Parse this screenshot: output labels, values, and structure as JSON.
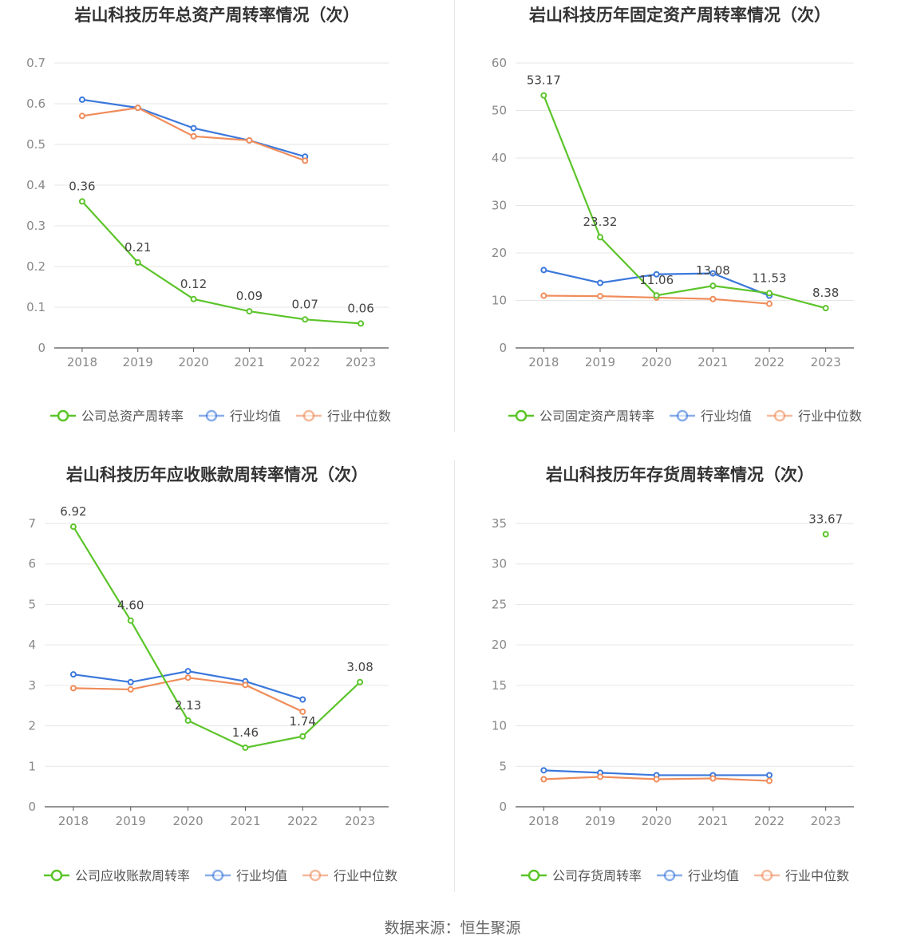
{
  "source_label": "数据来源：恒生聚源",
  "colors": {
    "company": "#5cc42a",
    "average": "#3b78dc",
    "median": "#f08c5a",
    "grid": "#e6e6e6",
    "axis": "#555555",
    "tick": "#888888"
  },
  "chart_data": [
    {
      "type": "line",
      "title": "岩山科技历年总资产周转率情况（次）",
      "categories": [
        "2018",
        "2019",
        "2020",
        "2021",
        "2022",
        "2023"
      ],
      "ylim": [
        0,
        0.7
      ],
      "yticks": [
        "0",
        "0.1",
        "0.2",
        "0.3",
        "0.4",
        "0.5",
        "0.6",
        "0.7"
      ],
      "legend_position": "bottom",
      "series": [
        {
          "name": "公司总资产周转率",
          "role": "company",
          "values": [
            0.36,
            0.21,
            0.12,
            0.09,
            0.07,
            0.06
          ],
          "labels": [
            "0.36",
            "0.21",
            "0.12",
            "0.09",
            "0.07",
            "0.06"
          ]
        },
        {
          "name": "行业均值",
          "role": "average",
          "values": [
            0.61,
            0.59,
            0.54,
            0.51,
            0.47,
            null
          ]
        },
        {
          "name": "行业中位数",
          "role": "median",
          "values": [
            0.57,
            0.59,
            0.52,
            0.51,
            0.46,
            null
          ]
        }
      ]
    },
    {
      "type": "line",
      "title": "岩山科技历年固定资产周转率情况（次）",
      "categories": [
        "2018",
        "2019",
        "2020",
        "2021",
        "2022",
        "2023"
      ],
      "ylim": [
        0,
        60
      ],
      "yticks": [
        "0",
        "10",
        "20",
        "30",
        "40",
        "50",
        "60"
      ],
      "legend_position": "bottom",
      "series": [
        {
          "name": "公司固定资产周转率",
          "role": "company",
          "values": [
            53.17,
            23.32,
            11.06,
            13.08,
            11.53,
            8.38
          ],
          "labels": [
            "53.17",
            "23.32",
            "11.06",
            "13.08",
            "11.53",
            "8.38"
          ]
        },
        {
          "name": "行业均值",
          "role": "average",
          "values": [
            16.4,
            13.7,
            15.5,
            15.7,
            11.0,
            null
          ]
        },
        {
          "name": "行业中位数",
          "role": "median",
          "values": [
            11.0,
            10.9,
            10.6,
            10.3,
            9.3,
            null
          ]
        }
      ]
    },
    {
      "type": "line",
      "title": "岩山科技历年应收账款周转率情况（次）",
      "categories": [
        "2018",
        "2019",
        "2020",
        "2021",
        "2022",
        "2023"
      ],
      "ylim": [
        0,
        7
      ],
      "yticks": [
        "0",
        "1",
        "2",
        "3",
        "4",
        "5",
        "6",
        "7"
      ],
      "legend_position": "bottom",
      "series": [
        {
          "name": "公司应收账款周转率",
          "role": "company",
          "values": [
            6.92,
            4.6,
            2.13,
            1.46,
            1.74,
            3.08
          ],
          "labels": [
            "6.92",
            "4.60",
            "2.13",
            "1.46",
            "1.74",
            "3.08"
          ]
        },
        {
          "name": "行业均值",
          "role": "average",
          "values": [
            3.27,
            3.08,
            3.35,
            3.1,
            2.65,
            null
          ]
        },
        {
          "name": "行业中位数",
          "role": "median",
          "values": [
            2.93,
            2.9,
            3.19,
            3.01,
            2.35,
            null
          ]
        }
      ]
    },
    {
      "type": "line",
      "title": "岩山科技历年存货周转率情况（次）",
      "categories": [
        "2018",
        "2019",
        "2020",
        "2021",
        "2022",
        "2023"
      ],
      "ylim": [
        0,
        35
      ],
      "yticks": [
        "0",
        "5",
        "10",
        "15",
        "20",
        "25",
        "30",
        "35"
      ],
      "legend_position": "bottom",
      "series": [
        {
          "name": "公司存货周转率",
          "role": "company",
          "values": [
            null,
            null,
            null,
            null,
            null,
            33.67
          ],
          "labels": [
            "",
            "",
            "",
            "",
            "",
            "33.67"
          ]
        },
        {
          "name": "行业均值",
          "role": "average",
          "values": [
            4.5,
            4.2,
            3.9,
            3.9,
            3.9,
            null
          ]
        },
        {
          "name": "行业中位数",
          "role": "median",
          "values": [
            3.4,
            3.7,
            3.4,
            3.5,
            3.2,
            null
          ]
        }
      ]
    }
  ]
}
